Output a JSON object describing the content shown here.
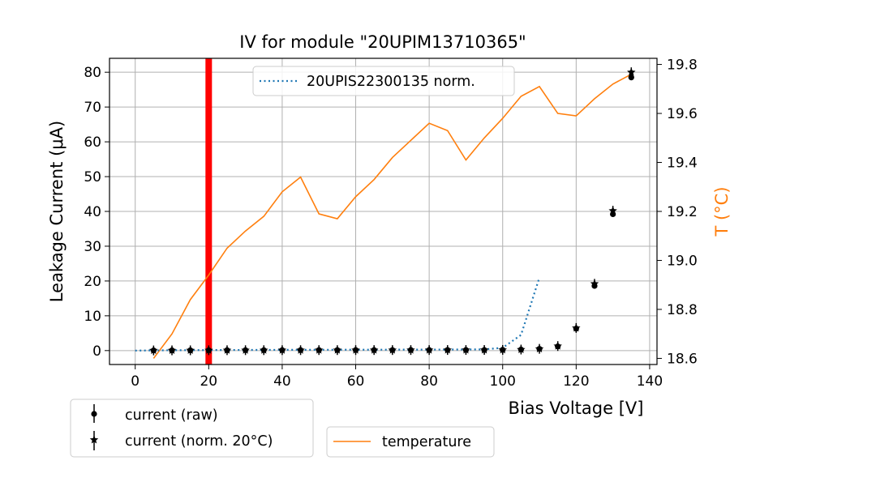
{
  "chart_data": {
    "type": "line",
    "title": "IV for module \"20UPIM13710365\"",
    "xlabel": "Bias Voltage [V]",
    "ylabel": "Leakage Current (μA)",
    "y2label": "T (°C)",
    "xlim": [
      -7,
      142
    ],
    "ylim": [
      -4,
      84
    ],
    "y2lim": [
      18.575,
      19.825
    ],
    "xticks": [
      0,
      20,
      40,
      60,
      80,
      100,
      120,
      140
    ],
    "yticks": [
      0,
      10,
      20,
      30,
      40,
      50,
      60,
      70,
      80
    ],
    "y2ticks": [
      18.6,
      18.8,
      19.0,
      19.2,
      19.4,
      19.6,
      19.8
    ],
    "grid": true,
    "vline": {
      "x": 20,
      "color": "#ff0000"
    },
    "colors": {
      "reference": "#1f77b4",
      "temperature": "#ff7f0e",
      "markers": "#000000"
    },
    "series": [
      {
        "name": "current (raw)",
        "marker": "circle",
        "x": [
          5,
          10,
          15,
          20,
          25,
          30,
          35,
          40,
          45,
          50,
          55,
          60,
          65,
          70,
          75,
          80,
          85,
          90,
          95,
          100,
          105,
          110,
          115,
          120,
          125,
          130,
          135
        ],
        "values": [
          0.05,
          0.07,
          0.08,
          0.1,
          0.11,
          0.12,
          0.12,
          0.13,
          0.13,
          0.14,
          0.14,
          0.15,
          0.15,
          0.15,
          0.16,
          0.16,
          0.17,
          0.17,
          0.18,
          0.2,
          0.3,
          0.5,
          1.2,
          6.3,
          18.6,
          39.2,
          78.5
        ]
      },
      {
        "name": "current (norm. 20°C)",
        "marker": "star",
        "x": [
          5,
          10,
          15,
          20,
          25,
          30,
          35,
          40,
          45,
          50,
          55,
          60,
          65,
          70,
          75,
          80,
          85,
          90,
          95,
          100,
          105,
          110,
          115,
          120,
          125,
          130,
          135
        ],
        "values": [
          0.05,
          0.07,
          0.08,
          0.1,
          0.11,
          0.12,
          0.12,
          0.13,
          0.13,
          0.14,
          0.14,
          0.15,
          0.15,
          0.15,
          0.16,
          0.16,
          0.17,
          0.17,
          0.18,
          0.2,
          0.3,
          0.5,
          1.3,
          6.5,
          19.2,
          40.2,
          80.0
        ]
      },
      {
        "name": "20UPIS22300135 norm.",
        "style": "dotted",
        "axis": "left",
        "x": [
          0,
          5,
          10,
          15,
          20,
          25,
          30,
          35,
          40,
          45,
          50,
          55,
          60,
          65,
          70,
          75,
          80,
          85,
          90,
          95,
          100,
          105,
          110
        ],
        "values": [
          0.0,
          0.05,
          0.1,
          0.12,
          0.15,
          0.17,
          0.18,
          0.2,
          0.21,
          0.22,
          0.23,
          0.24,
          0.25,
          0.26,
          0.27,
          0.28,
          0.29,
          0.3,
          0.32,
          0.35,
          0.8,
          4.5,
          21.0
        ]
      },
      {
        "name": "temperature",
        "style": "solid",
        "axis": "right",
        "x": [
          5,
          10,
          15,
          20,
          25,
          30,
          35,
          40,
          45,
          50,
          55,
          60,
          65,
          70,
          75,
          80,
          85,
          90,
          95,
          100,
          105,
          110,
          115,
          120,
          125,
          130,
          135
        ],
        "values": [
          18.6,
          18.7,
          18.84,
          18.94,
          19.05,
          19.12,
          19.18,
          19.28,
          19.34,
          19.19,
          19.17,
          19.26,
          19.33,
          19.42,
          19.49,
          19.56,
          19.53,
          19.41,
          19.5,
          19.58,
          19.67,
          19.71,
          19.6,
          19.59,
          19.66,
          19.72,
          19.76
        ]
      }
    ],
    "legends": [
      {
        "position": "upper-center",
        "entries": [
          "20UPIS22300135 norm."
        ]
      },
      {
        "position": "below-left",
        "entries": [
          "current (raw)",
          "current (norm. 20°C)"
        ]
      },
      {
        "position": "below-center",
        "entries": [
          "temperature"
        ]
      }
    ]
  }
}
